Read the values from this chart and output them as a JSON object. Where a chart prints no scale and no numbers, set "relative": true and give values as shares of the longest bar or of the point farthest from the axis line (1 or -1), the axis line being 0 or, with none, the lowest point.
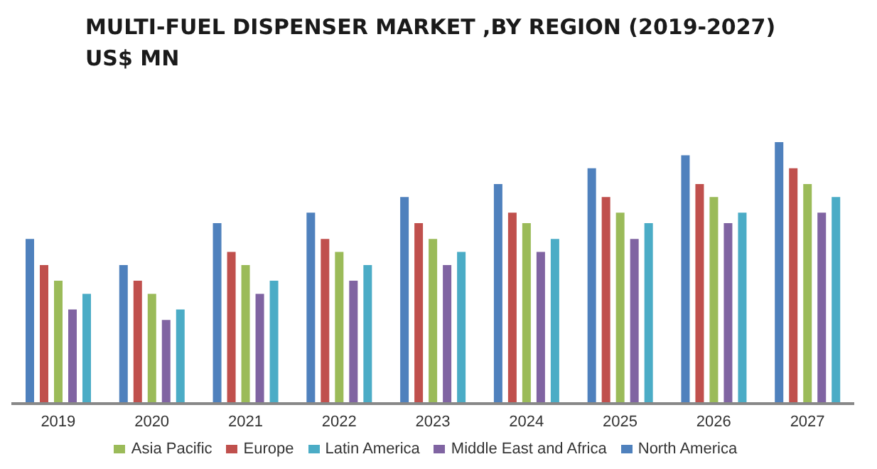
{
  "chart_data": {
    "type": "bar",
    "title": "MULTI-FUEL DISPENSER MARKET ,BY REGION (2019-2027)\nUS$ MN",
    "relative": true,
    "legend": "bottom",
    "grid": false,
    "categories": [
      "2019",
      "2020",
      "2021",
      "2022",
      "2023",
      "2024",
      "2025",
      "2026",
      "2027"
    ],
    "series": [
      {
        "name": "North America",
        "color": "#4f81bd",
        "values": [
          0.63,
          0.53,
          0.69,
          0.73,
          0.79,
          0.84,
          0.9,
          0.95,
          1
        ]
      },
      {
        "name": "Europe",
        "color": "#c0504d",
        "values": [
          0.53,
          0.47,
          0.58,
          0.63,
          0.69,
          0.73,
          0.79,
          0.84,
          0.9
        ]
      },
      {
        "name": "Asia Pacific",
        "color": "#9bbb59",
        "values": [
          0.47,
          0.42,
          0.53,
          0.58,
          0.63,
          0.69,
          0.73,
          0.79,
          0.84
        ]
      },
      {
        "name": "Middle East and Africa",
        "color": "#8064a2",
        "values": [
          0.36,
          0.32,
          0.42,
          0.47,
          0.53,
          0.58,
          0.63,
          0.69,
          0.73
        ]
      },
      {
        "name": "Latin America",
        "color": "#4bacc6",
        "values": [
          0.42,
          0.36,
          0.47,
          0.53,
          0.58,
          0.63,
          0.69,
          0.73,
          0.79
        ]
      }
    ]
  }
}
